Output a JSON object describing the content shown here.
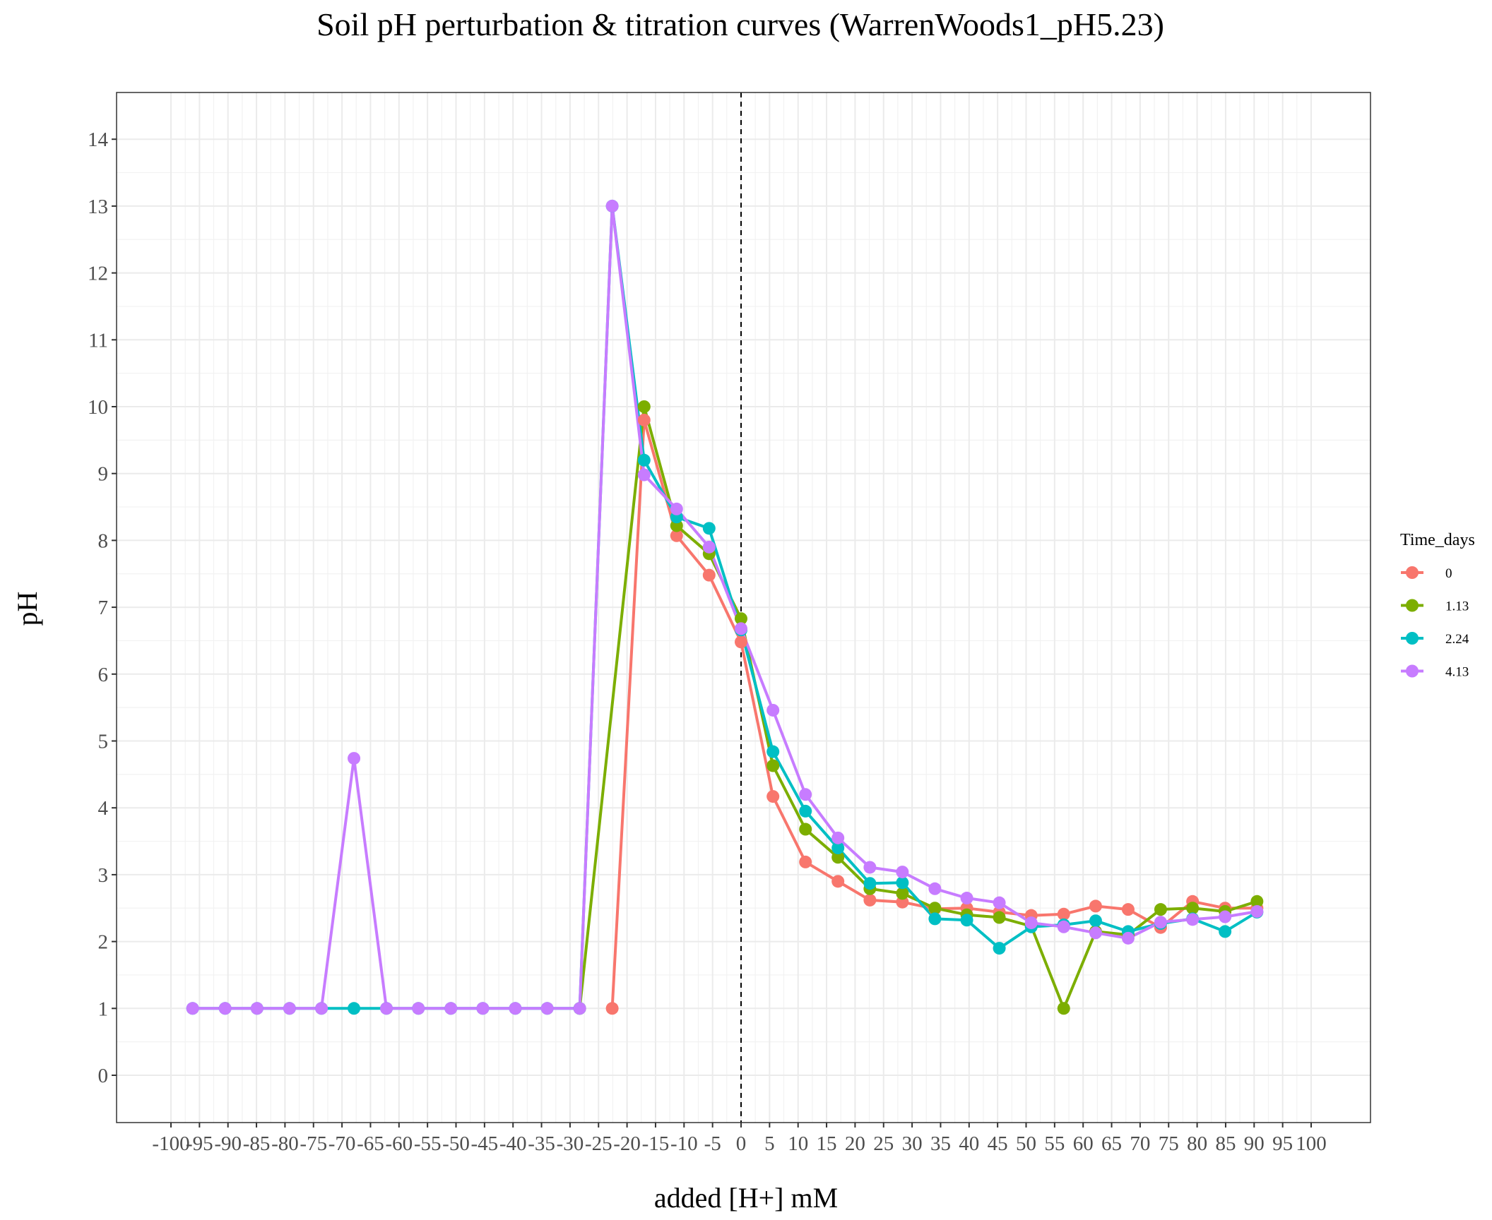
{
  "chart_data": {
    "type": "line",
    "title": "Soil pH perturbation & titration curves (WarrenWoods1_pH5.23)",
    "xlabel": "added [H+] mM",
    "ylabel": "pH",
    "xlim": [
      -100,
      100
    ],
    "ylim": [
      -0.65,
      14.7
    ],
    "x_ticks": [
      -100,
      -95,
      -90,
      -85,
      -80,
      -75,
      -70,
      -65,
      -60,
      -55,
      -50,
      -45,
      -40,
      -35,
      -30,
      -25,
      -20,
      -15,
      -10,
      -5,
      0,
      5,
      10,
      15,
      20,
      25,
      30,
      35,
      40,
      45,
      50,
      55,
      60,
      65,
      70,
      75,
      80,
      85,
      90,
      95,
      100
    ],
    "x_tick_labels": [
      "-100",
      "-95",
      "-90",
      "-85",
      "-80",
      "-75",
      "-70",
      "-65",
      "-60",
      "-55",
      "-50",
      "-45",
      "-40",
      "-35",
      "-30",
      "-25",
      "-20",
      "-15",
      "-10",
      "-5",
      "0",
      "5",
      "10",
      "15",
      "20",
      "25",
      "30",
      "35",
      "40",
      "45",
      "50",
      "55",
      "60",
      "65",
      "70",
      "75",
      "80",
      "85",
      "90",
      "95",
      "100"
    ],
    "y_ticks": [
      0,
      1,
      2,
      3,
      4,
      5,
      6,
      7,
      8,
      9,
      10,
      11,
      12,
      13,
      14
    ],
    "y_tick_labels": [
      "0",
      "1",
      "2",
      "3",
      "4",
      "5",
      "6",
      "7",
      "8",
      "9",
      "10",
      "11",
      "12",
      "13",
      "14"
    ],
    "grid": true,
    "reference_line": {
      "x": 0,
      "style": "dashed"
    },
    "legend": {
      "title": "Time_days",
      "position": "right"
    },
    "series": [
      {
        "name": "0",
        "color": "#F8766D",
        "x": [
          -22.6,
          -17,
          -11.3,
          -5.6,
          0,
          5.6,
          11.3,
          17,
          22.6,
          28.3,
          34,
          39.6,
          45.3,
          50.9,
          56.6,
          62.2,
          67.9,
          73.6,
          79.2,
          84.9,
          90.5
        ],
        "y": [
          1,
          9.8,
          8.07,
          7.48,
          6.48,
          4.17,
          3.19,
          2.9,
          2.62,
          2.59,
          2.49,
          2.5,
          2.44,
          2.39,
          2.41,
          2.53,
          2.48,
          2.21,
          2.6,
          2.5,
          2.5
        ]
      },
      {
        "name": "1.13",
        "color": "#7CAE00",
        "x": [
          -28.3,
          -17,
          -11.3,
          -5.6,
          0,
          5.6,
          11.3,
          17,
          22.6,
          28.3,
          34,
          39.6,
          45.3,
          50.9,
          56.6,
          62.2,
          67.9,
          73.6,
          79.2,
          84.9,
          90.5
        ],
        "y": [
          1,
          10,
          8.22,
          7.8,
          6.83,
          4.63,
          3.68,
          3.26,
          2.79,
          2.72,
          2.5,
          2.4,
          2.36,
          2.23,
          1,
          2.15,
          2.1,
          2.48,
          2.5,
          2.45,
          2.6
        ]
      },
      {
        "name": "2.24",
        "color": "#00BFC4",
        "x": [
          -96.2,
          -90.5,
          -84.9,
          -79.2,
          -73.6,
          -67.9,
          -62.2,
          -56.6,
          -50.9,
          -45.3,
          -39.6,
          -34,
          -28.3,
          -22.6,
          -17,
          -11.3,
          -5.6,
          0,
          5.6,
          11.3,
          17,
          22.6,
          28.3,
          34,
          39.6,
          45.3,
          50.9,
          56.6,
          62.2,
          67.9,
          73.6,
          79.2,
          84.9,
          90.5
        ],
        "y": [
          1,
          1,
          1,
          1,
          1,
          1,
          1,
          1,
          1,
          1,
          1,
          1,
          1,
          13,
          9.2,
          8.35,
          8.18,
          6.66,
          4.84,
          3.95,
          3.4,
          2.87,
          2.88,
          2.34,
          2.32,
          1.9,
          2.22,
          2.25,
          2.31,
          2.15,
          2.27,
          2.34,
          2.15,
          2.44
        ]
      },
      {
        "name": "4.13",
        "color": "#C77CFF",
        "x": [
          -96.2,
          -90.5,
          -84.9,
          -79.2,
          -73.6,
          -67.9,
          -62.2,
          -56.6,
          -50.9,
          -45.3,
          -39.6,
          -34,
          -28.3,
          -22.6,
          -17,
          -11.3,
          -5.6,
          0,
          5.6,
          11.3,
          17,
          22.6,
          28.3,
          34,
          39.6,
          45.3,
          50.9,
          56.6,
          62.2,
          67.9,
          73.6,
          79.2,
          84.9,
          90.5
        ],
        "y": [
          1,
          1,
          1,
          1,
          1,
          4.74,
          1,
          1,
          1,
          1,
          1,
          1,
          1,
          13,
          8.98,
          8.47,
          7.9,
          6.68,
          5.46,
          4.2,
          3.55,
          3.11,
          3.04,
          2.79,
          2.65,
          2.58,
          2.28,
          2.22,
          2.13,
          2.05,
          2.29,
          2.33,
          2.37,
          2.45
        ]
      }
    ]
  }
}
